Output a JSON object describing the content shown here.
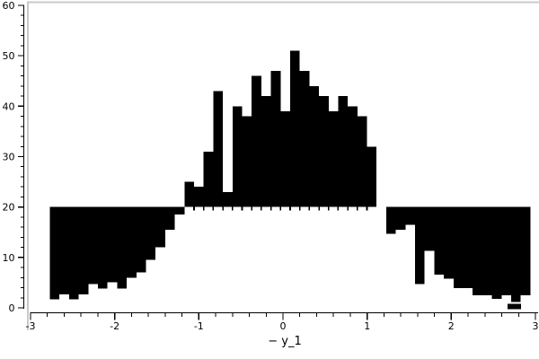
{
  "chart_data": {
    "type": "bar",
    "subtype": "overlaid-histograms",
    "title": "",
    "xlabel": "− y_1",
    "ylabel": "",
    "xlim": [
      -3,
      3
    ],
    "ylim": [
      0,
      60
    ],
    "x_ticks": [
      -3,
      -2,
      -1,
      0,
      1,
      2,
      3
    ],
    "x_tick_labels": [
      "-3",
      "-2",
      "-1",
      "0",
      "1",
      "2",
      "3"
    ],
    "y_ticks": [
      0,
      10,
      20,
      30,
      40,
      50,
      60
    ],
    "y_tick_labels": [
      "0",
      "10",
      "20",
      "30",
      "40",
      "50",
      "60"
    ],
    "x_minor_step": 0.2,
    "y_minor_step": 2,
    "grid": "off",
    "legend": "none",
    "band_level": 20,
    "bins": {
      "start": -2.77,
      "width": 0.1142,
      "count": 50,
      "black_bottom": [
        1.7,
        2.7,
        1.7,
        2.7,
        4.7,
        3.8,
        5.1,
        3.8,
        6.0,
        7.0,
        9.5,
        12.0,
        15.5,
        18.5,
        20,
        20,
        20,
        20,
        20,
        20,
        20,
        20,
        20,
        20,
        20,
        20,
        20,
        20,
        20,
        20,
        20,
        20,
        20,
        20,
        20,
        14.7,
        15.5,
        16.5,
        4.7,
        11.3,
        6.6,
        5.8,
        3.9,
        3.9,
        2.5,
        2.5,
        1.8,
        2.5,
        1.2,
        2.5
      ],
      "black_top": [
        20,
        20,
        20,
        20,
        20,
        20,
        20,
        20,
        20,
        20,
        20,
        20,
        20,
        20,
        25,
        24,
        31,
        43,
        23,
        40,
        38,
        46,
        42,
        47,
        39,
        51,
        47,
        44,
        42,
        39,
        42,
        40,
        38,
        32,
        20,
        20,
        20,
        20,
        20,
        20,
        20,
        20,
        20,
        20,
        20,
        20,
        20,
        20,
        20,
        20
      ]
    },
    "extra_black_patch": {
      "x0": 2.67,
      "x1": 2.83,
      "y0": -0.27,
      "y1": 0.8
    },
    "colors": {
      "bars": "#000000",
      "frame_gray": "#c9c9c9",
      "axis": "#000000",
      "background": "#ffffff"
    }
  }
}
